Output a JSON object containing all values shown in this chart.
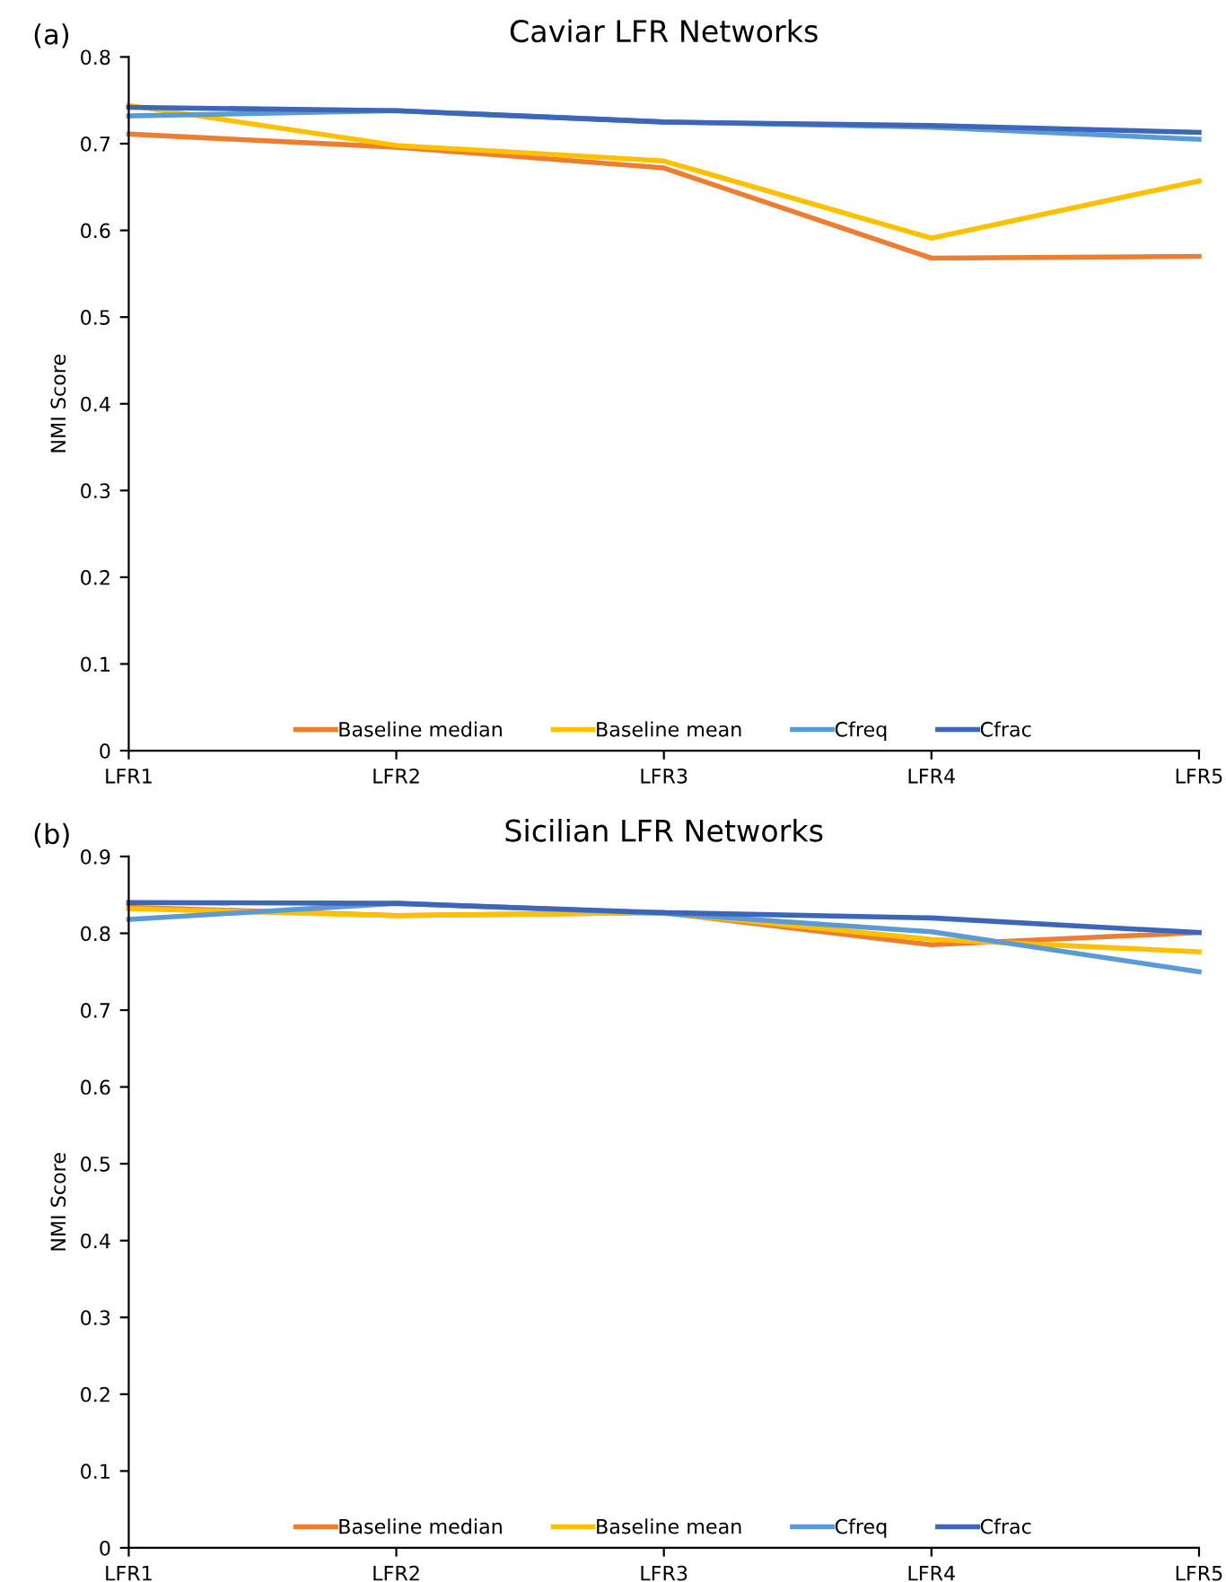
{
  "chart_data": [
    {
      "type": "line",
      "title": "Caviar LFR Networks",
      "ylabel": "NMI Score",
      "annotations": [
        "(a)"
      ],
      "categories": [
        "LFR1",
        "LFR2",
        "LFR3",
        "LFR4",
        "LFR5"
      ],
      "ylim": [
        0,
        0.8
      ],
      "yticks": [
        0,
        0.1,
        0.2,
        0.3,
        0.4,
        0.5,
        0.6,
        0.7,
        0.8
      ],
      "grid": false,
      "legend": "bottom",
      "marker": "none",
      "line_style": "solid",
      "series": [
        {
          "name": "Baseline median",
          "color": "#ed7d31",
          "values": [
            0.711,
            0.696,
            0.672,
            0.568,
            0.57
          ]
        },
        {
          "name": "Baseline mean",
          "color": "#ffc000",
          "values": [
            0.744,
            0.698,
            0.68,
            0.591,
            0.657
          ]
        },
        {
          "name": "Cfreq",
          "color": "#5b9bd5",
          "values": [
            0.732,
            0.738,
            0.725,
            0.719,
            0.705
          ]
        },
        {
          "name": "Cfrac",
          "color": "#3d65b8",
          "values": [
            0.742,
            0.738,
            0.725,
            0.721,
            0.713
          ]
        }
      ]
    },
    {
      "type": "line",
      "title": "Sicilian LFR Networks",
      "ylabel": "NMI Score",
      "annotations": [
        "(b)"
      ],
      "categories": [
        "LFR1",
        "LFR2",
        "LFR3",
        "LFR4",
        "LFR5"
      ],
      "ylim": [
        0,
        0.9
      ],
      "yticks": [
        0,
        0.1,
        0.2,
        0.3,
        0.4,
        0.5,
        0.6,
        0.7,
        0.8,
        0.9
      ],
      "grid": false,
      "legend": "bottom",
      "marker": "none",
      "line_style": "solid",
      "series": [
        {
          "name": "Baseline median",
          "color": "#ed7d31",
          "values": [
            0.834,
            0.823,
            0.827,
            0.785,
            0.801
          ]
        },
        {
          "name": "Baseline mean",
          "color": "#ffc000",
          "values": [
            0.832,
            0.823,
            0.827,
            0.792,
            0.776
          ]
        },
        {
          "name": "Cfreq",
          "color": "#5b9bd5",
          "values": [
            0.818,
            0.839,
            0.826,
            0.802,
            0.75
          ]
        },
        {
          "name": "Cfrac",
          "color": "#3d65b8",
          "values": [
            0.84,
            0.839,
            0.827,
            0.82,
            0.801
          ]
        }
      ]
    }
  ]
}
